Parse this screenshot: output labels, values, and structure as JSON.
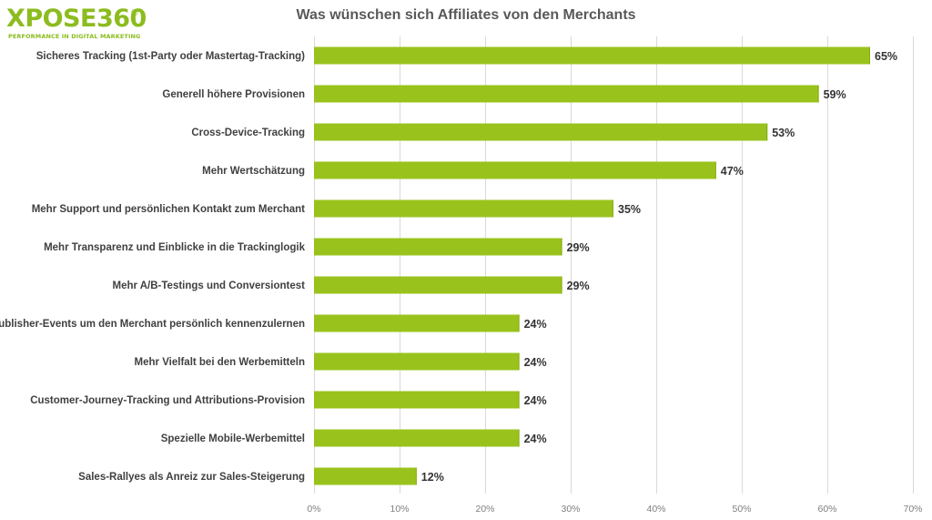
{
  "logo": {
    "wordmark": "XPOSE360",
    "reg_mark": "®",
    "tagline": "PERFORMANCE IN DIGITAL MARKETING"
  },
  "colors": {
    "bar": "#99c31c",
    "bar_edge": "#87ad12",
    "grid": "#d9d9d9",
    "brand": "#8cbc1e"
  },
  "chart_data": {
    "type": "bar",
    "orientation": "horizontal",
    "title": "Was wünschen sich Affiliates von den Merchants",
    "xlabel": "",
    "ylabel": "",
    "xlim": [
      0,
      70
    ],
    "x_ticks": [
      0,
      10,
      20,
      30,
      40,
      50,
      60,
      70
    ],
    "x_tick_labels": [
      "0%",
      "10%",
      "20%",
      "30%",
      "40%",
      "50%",
      "60%",
      "70%"
    ],
    "grid": "vertical",
    "legend": "none",
    "categories": [
      "Sicheres Tracking (1st-Party oder Mastertag-Tracking)",
      "Generell höhere Provisionen",
      "Cross-Device-Tracking",
      "Mehr Wertschätzung",
      "Mehr Support und persönlichen Kontakt zum Merchant",
      "Mehr Transparenz und Einblicke in die Trackinglogik",
      "Mehr A/B-Testings und Conversiontest",
      "Publisher-Events um den Merchant persönlich kennenzulernen",
      "Mehr Vielfalt bei den Werbemitteln",
      "Customer-Journey-Tracking und Attributions-Provision",
      "Spezielle Mobile-Werbemittel",
      "Sales-Rallyes als Anreiz zur Sales-Steigerung"
    ],
    "values": [
      65,
      59,
      53,
      47,
      35,
      29,
      29,
      24,
      24,
      24,
      24,
      12
    ],
    "value_labels": [
      "65%",
      "59%",
      "53%",
      "47%",
      "35%",
      "29%",
      "29%",
      "24%",
      "24%",
      "24%",
      "24%",
      "12%"
    ]
  }
}
